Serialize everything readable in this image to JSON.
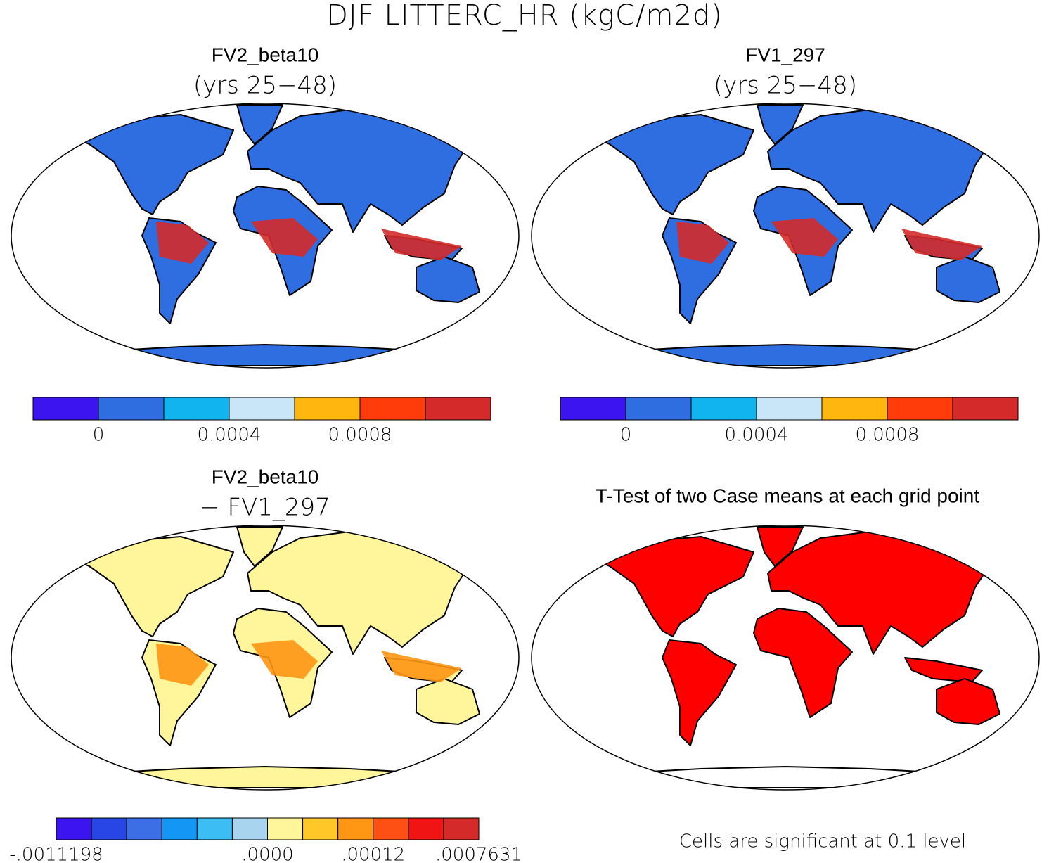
{
  "title": "DJF LITTERC_HR (kgC/m2d)",
  "panels": [
    {
      "title": "FV2_beta10",
      "subtitle": "(yrs 25−48)",
      "colorbar": {
        "colors": [
          "#3c14f0",
          "#2f6ee0",
          "#12b4f0",
          "#c8e6f8",
          "#ffb60f",
          "#ff3c0a",
          "#d42a2a"
        ],
        "labels": [
          "0",
          "0.0004",
          "0.0008"
        ]
      }
    },
    {
      "title": "FV1_297",
      "subtitle": "(yrs 25−48)",
      "colorbar": {
        "colors": [
          "#3c14f0",
          "#2f6ee0",
          "#12b4f0",
          "#c8e6f8",
          "#ffb60f",
          "#ff3c0a",
          "#d42a2a"
        ],
        "labels": [
          "0",
          "0.0004",
          "0.0008"
        ]
      }
    },
    {
      "title": "FV2_beta10",
      "subtitle": "− FV1_297",
      "colorbar": {
        "colors": [
          "#3c14f0",
          "#2846e6",
          "#3c6ee6",
          "#1496f5",
          "#3cbef5",
          "#a8d4ef",
          "#fff59a",
          "#ffc828",
          "#ff9614",
          "#ff5014",
          "#f01414",
          "#d42a2a"
        ],
        "labels": [
          "-.0011198",
          ".0000",
          ".00012",
          ".0007631"
        ]
      }
    },
    {
      "title": "T-Test of two Case means at each grid point",
      "note": "Cells are significant at 0.1 level"
    }
  ]
}
